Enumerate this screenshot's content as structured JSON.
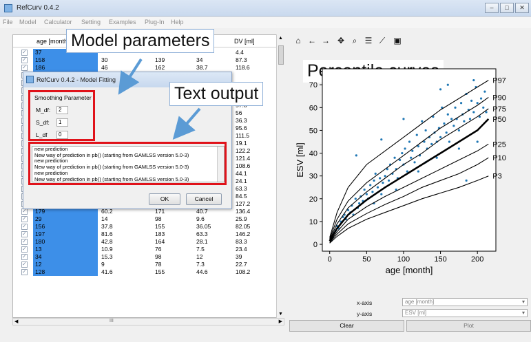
{
  "window": {
    "title": "RefCurv 0.4.2"
  },
  "menu": [
    "File",
    "Model",
    "Calculator",
    "Setting",
    "Examples",
    "Plug-In",
    "Help"
  ],
  "table": {
    "headers": [
      "age [month",
      "",
      "",
      "",
      "DV [ml]"
    ],
    "rows": [
      [
        "37",
        "",
        "",
        "",
        "4.4"
      ],
      [
        "158",
        "30",
        "139",
        "34",
        "87.3"
      ],
      [
        "186",
        "46",
        "162",
        "38.7",
        "118.6"
      ],
      [
        "",
        "",
        "",
        "",
        ""
      ],
      [
        "",
        "",
        "",
        "",
        ""
      ],
      [
        "",
        "",
        "",
        "",
        ""
      ],
      [
        "",
        "",
        "",
        "",
        "52.9"
      ],
      [
        "",
        "",
        "",
        "",
        "57.8"
      ],
      [
        "",
        "",
        "",
        "",
        "56"
      ],
      [
        "",
        "",
        "",
        "",
        "36.3"
      ],
      [
        "",
        "",
        "",
        "",
        "95.6"
      ],
      [
        "",
        "",
        "",
        "",
        "111.5"
      ],
      [
        "",
        "",
        "",
        "",
        "19.1"
      ],
      [
        "",
        "",
        "",
        "",
        "122.2"
      ],
      [
        "",
        "",
        "",
        "",
        "121.4"
      ],
      [
        "",
        "",
        "",
        "",
        "108.6"
      ],
      [
        "",
        "",
        "",
        "",
        "44.1"
      ],
      [
        "24",
        "12.2",
        "83",
        "7.8",
        "24.1"
      ],
      [
        "113",
        "31.3",
        "136",
        "26.7",
        "63.3"
      ],
      [
        "144",
        "37",
        "152",
        "35.5",
        "84.5"
      ],
      [
        "191",
        "66.9",
        "168.5",
        "51",
        "127.2"
      ],
      [
        "179",
        "60.2",
        "171",
        "40.7",
        "136.4"
      ],
      [
        "29",
        "14",
        "98",
        "9.6",
        "25.9"
      ],
      [
        "156",
        "37.8",
        "155",
        "36.05",
        "82.05"
      ],
      [
        "197",
        "81.6",
        "183",
        "63.3",
        "146.2"
      ],
      [
        "180",
        "42.8",
        "164",
        "28.1",
        "83.3"
      ],
      [
        "13",
        "10.9",
        "76",
        "7.5",
        "23.4"
      ],
      [
        "34",
        "15.3",
        "98",
        "12",
        "39"
      ],
      [
        "12",
        "9",
        "78",
        "7.3",
        "22.7"
      ],
      [
        "128",
        "41.6",
        "155",
        "44.6",
        "108.2"
      ]
    ],
    "hscroll_glyph": "III"
  },
  "dialog": {
    "title": "RefCurv 0.4.2 - Model Fitting",
    "group_label": "Smoothing Parameter",
    "params": [
      {
        "label": "M_df:",
        "value": "2"
      },
      {
        "label": "S_df:",
        "value": "1"
      },
      {
        "label": "L_df",
        "value": "0"
      }
    ],
    "output_lines": [
      "new prediction",
      "New way of prediction in pb()  (starting from GAMLSS version 5.0-3)",
      "new prediction",
      "New way of prediction in pb()  (starting from GAMLSS version 5.0-3)",
      "new prediction",
      "New way of prediction in pb()  (starting from GAMLSS version 5.0-3)"
    ],
    "ok_label": "OK",
    "cancel_label": "Cancel"
  },
  "callouts": {
    "model_parameters": "Model parameters",
    "text_output": "Text output",
    "percentile_curves": "Percentile curves"
  },
  "toolbar": [
    "home-icon",
    "back-arrow-icon",
    "forward-arrow-icon",
    "pan-icon",
    "zoom-icon",
    "configure-subplots-icon",
    "edit-axis-icon",
    "save-icon"
  ],
  "chart_data": {
    "type": "scatter",
    "xlabel": "age [month]",
    "ylabel": "ESV [ml]",
    "xlim": [
      -10,
      225
    ],
    "ylim": [
      -3,
      77
    ],
    "xticks": [
      0,
      50,
      100,
      150,
      200
    ],
    "yticks": [
      0,
      10,
      20,
      30,
      40,
      50,
      60,
      70
    ],
    "curves": [
      {
        "name": "P97",
        "x": [
          0,
          10,
          25,
          50,
          75,
          100,
          125,
          150,
          175,
          200,
          215
        ],
        "y": [
          3,
          14,
          25,
          35,
          41,
          47,
          53,
          59,
          64,
          69,
          72
        ]
      },
      {
        "name": "P90",
        "x": [
          0,
          10,
          25,
          50,
          75,
          100,
          125,
          150,
          175,
          200,
          215
        ],
        "y": [
          2.5,
          11,
          19,
          27,
          33,
          39,
          45,
          51,
          56,
          61,
          64.5
        ]
      },
      {
        "name": "P75",
        "x": [
          0,
          10,
          25,
          50,
          75,
          100,
          125,
          150,
          175,
          200,
          215
        ],
        "y": [
          2,
          9,
          16,
          23,
          29,
          35,
          40,
          46,
          51,
          56,
          59.5
        ]
      },
      {
        "name": "P50",
        "x": [
          0,
          10,
          25,
          50,
          75,
          100,
          125,
          150,
          175,
          200,
          215
        ],
        "y": [
          1.5,
          7,
          13,
          19.5,
          25,
          30,
          35,
          40,
          45,
          50,
          55
        ]
      },
      {
        "name": "P25",
        "x": [
          0,
          10,
          25,
          50,
          75,
          100,
          125,
          150,
          175,
          200,
          215
        ],
        "y": [
          1,
          5.5,
          11,
          16.5,
          21,
          25,
          29,
          33,
          37,
          41,
          44
        ]
      },
      {
        "name": "P10",
        "x": [
          0,
          10,
          25,
          50,
          75,
          100,
          125,
          150,
          175,
          200,
          215
        ],
        "y": [
          0.8,
          4.5,
          9,
          13.5,
          17.5,
          21,
          25,
          28,
          31,
          35,
          38
        ]
      },
      {
        "name": "P3",
        "x": [
          0,
          10,
          25,
          50,
          75,
          100,
          125,
          150,
          175,
          200,
          215
        ],
        "y": [
          0.5,
          3.5,
          7,
          11,
          14,
          17,
          20,
          22.5,
          25,
          28,
          30
        ]
      }
    ],
    "points": [
      [
        2,
        2
      ],
      [
        4,
        3
      ],
      [
        6,
        5
      ],
      [
        8,
        6
      ],
      [
        10,
        8
      ],
      [
        12,
        7
      ],
      [
        15,
        10
      ],
      [
        18,
        12
      ],
      [
        20,
        13
      ],
      [
        22,
        11
      ],
      [
        25,
        15
      ],
      [
        28,
        14
      ],
      [
        30,
        17
      ],
      [
        32,
        13
      ],
      [
        35,
        20
      ],
      [
        36,
        39
      ],
      [
        38,
        16
      ],
      [
        40,
        18
      ],
      [
        42,
        21
      ],
      [
        45,
        19
      ],
      [
        47,
        24
      ],
      [
        50,
        22
      ],
      [
        52,
        20
      ],
      [
        55,
        26
      ],
      [
        58,
        23
      ],
      [
        60,
        28
      ],
      [
        62,
        31
      ],
      [
        65,
        25
      ],
      [
        68,
        29
      ],
      [
        70,
        46
      ],
      [
        72,
        27
      ],
      [
        75,
        30
      ],
      [
        78,
        33
      ],
      [
        80,
        28
      ],
      [
        82,
        35
      ],
      [
        85,
        31
      ],
      [
        88,
        38
      ],
      [
        90,
        33
      ],
      [
        92,
        29
      ],
      [
        95,
        37
      ],
      [
        98,
        40
      ],
      [
        100,
        35
      ],
      [
        102,
        42
      ],
      [
        105,
        32
      ],
      [
        108,
        45
      ],
      [
        110,
        38
      ],
      [
        112,
        41
      ],
      [
        115,
        36
      ],
      [
        118,
        48
      ],
      [
        120,
        43
      ],
      [
        122,
        39
      ],
      [
        125,
        54
      ],
      [
        128,
        45
      ],
      [
        130,
        50
      ],
      [
        132,
        42
      ],
      [
        135,
        47
      ],
      [
        138,
        44
      ],
      [
        140,
        56
      ],
      [
        142,
        49
      ],
      [
        145,
        45
      ],
      [
        148,
        51
      ],
      [
        150,
        47
      ],
      [
        152,
        60
      ],
      [
        155,
        53
      ],
      [
        158,
        49
      ],
      [
        160,
        57
      ],
      [
        162,
        45
      ],
      [
        165,
        55
      ],
      [
        168,
        52
      ],
      [
        170,
        60
      ],
      [
        172,
        55
      ],
      [
        175,
        50
      ],
      [
        178,
        62
      ],
      [
        180,
        57
      ],
      [
        182,
        54
      ],
      [
        185,
        66
      ],
      [
        188,
        59
      ],
      [
        190,
        55
      ],
      [
        192,
        63
      ],
      [
        195,
        58
      ],
      [
        198,
        69
      ],
      [
        200,
        62
      ],
      [
        203,
        56
      ],
      [
        205,
        64
      ],
      [
        208,
        60
      ],
      [
        210,
        67
      ],
      [
        212,
        58
      ],
      [
        185,
        28
      ],
      [
        160,
        70
      ],
      [
        150,
        68
      ],
      [
        120,
        32
      ],
      [
        90,
        24
      ],
      [
        60,
        18
      ],
      [
        70,
        22
      ],
      [
        145,
        38
      ],
      [
        200,
        45
      ],
      [
        175,
        42
      ],
      [
        195,
        72
      ],
      [
        100,
        55
      ],
      [
        130,
        36
      ]
    ]
  },
  "controls": {
    "x_axis_label": "x-axis",
    "x_axis_value": "age [month]",
    "y_axis_label": "y-axis",
    "y_axis_value": "ESV [ml]",
    "clear_label": "Clear",
    "plot_label": "Plot",
    "combo_arrow": "▾"
  }
}
